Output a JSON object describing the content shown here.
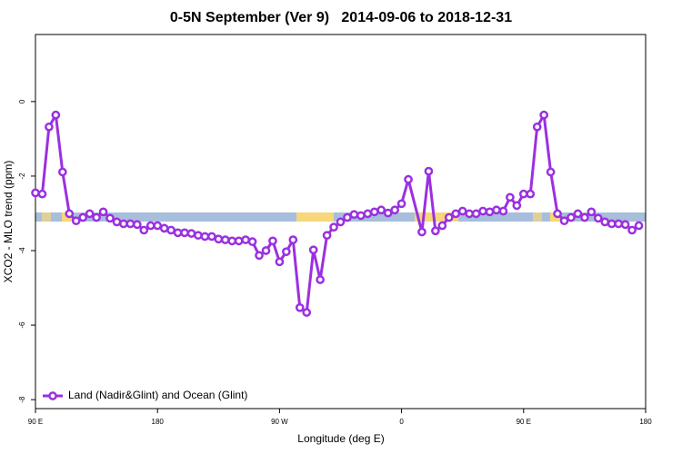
{
  "chart_data": {
    "type": "line",
    "title": "0-5N September (Ver 9)   2014-09-06 to 2018-12-31",
    "xlabel": "Longitude (deg E)",
    "ylabel": "XCO2 - MLO trend (ppm)",
    "x": [
      90,
      95,
      100,
      105,
      110,
      115,
      120,
      125,
      130,
      135,
      140,
      145,
      150,
      155,
      160,
      165,
      170,
      175,
      180,
      185,
      190,
      195,
      200,
      205,
      210,
      215,
      220,
      225,
      230,
      235,
      240,
      245,
      250,
      255,
      260,
      265,
      270,
      275,
      280,
      285,
      290,
      295,
      300,
      305,
      310,
      315,
      320,
      325,
      330,
      335,
      340,
      345,
      350,
      355,
      360,
      365,
      375,
      380,
      385,
      390,
      395,
      400,
      405,
      410,
      415,
      420,
      425,
      430,
      435,
      440,
      445,
      450,
      455,
      460,
      465,
      470,
      475,
      480,
      485,
      490,
      495,
      500,
      505,
      510,
      515,
      520,
      525,
      530,
      535
    ],
    "series": [
      {
        "name": "Land (Nadir&Glint) and Ocean (Glint)",
        "color": "#9b30e0",
        "values": [
          -2.45,
          -2.48,
          -0.68,
          -0.36,
          -1.89,
          -3.01,
          -3.2,
          -3.11,
          -3.01,
          -3.11,
          -2.96,
          -3.13,
          -3.23,
          -3.28,
          -3.28,
          -3.3,
          -3.45,
          -3.33,
          -3.33,
          -3.4,
          -3.45,
          -3.52,
          -3.52,
          -3.54,
          -3.59,
          -3.62,
          -3.62,
          -3.69,
          -3.71,
          -3.74,
          -3.74,
          -3.71,
          -3.76,
          -4.13,
          -4.0,
          -3.74,
          -4.3,
          -4.03,
          -3.71,
          -5.53,
          -5.66,
          -3.98,
          -4.78,
          -3.59,
          -3.37,
          -3.23,
          -3.11,
          -3.03,
          -3.06,
          -3.01,
          -2.96,
          -2.91,
          -2.99,
          -2.91,
          -2.74,
          -2.09,
          -3.5,
          -1.87,
          -3.47,
          -3.33,
          -3.11,
          -3.01,
          -2.94,
          -3.01,
          -3.01,
          -2.94,
          -2.96,
          -2.91,
          -2.94,
          -2.57,
          -2.79,
          -2.48,
          -2.48,
          -0.68,
          -0.36,
          -1.89,
          -3.01,
          -3.2,
          -3.11,
          -3.01,
          -3.11,
          -2.96,
          -3.13,
          -3.23,
          -3.28,
          -3.28,
          -3.3,
          -3.45,
          -3.33
        ]
      }
    ],
    "xlim": [
      90,
      540
    ],
    "xticks": [
      {
        "value": 90,
        "label": "90 E"
      },
      180,
      {
        "value": 270,
        "label": "90 W"
      },
      {
        "value": 360,
        "label": "0"
      },
      {
        "value": 450,
        "label": "90 E"
      },
      {
        "value": 540,
        "label": "180"
      }
    ],
    "ylim": [
      -8.24,
      1.8
    ],
    "yticks": [
      0,
      -2,
      -4,
      -6,
      -8
    ],
    "legend": "bottom-left"
  }
}
